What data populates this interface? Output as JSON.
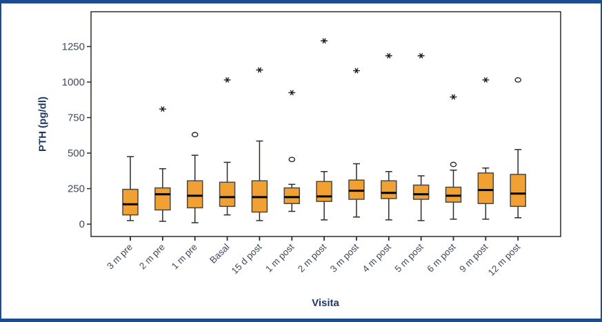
{
  "figure": {
    "border_color": "#1A4C8F",
    "background": "#FFFFFF"
  },
  "chart_data": {
    "type": "boxplot",
    "title": "",
    "xlabel": "Visita",
    "ylabel": "PTH (pg/dl)",
    "ylim": [
      -87,
      1495
    ],
    "yticks": [
      0,
      250,
      500,
      750,
      1000,
      1250
    ],
    "grid": false,
    "legend": "none",
    "outlier_markers": {
      "extreme": "asterisk",
      "mild": "circle"
    },
    "categories": [
      "3 m pre",
      "2 m pre",
      "1 m pre",
      "Basal",
      "15 d post",
      "1 m post",
      "2 m post",
      "3 m post",
      "4 m post",
      "5 m post",
      "6 m post",
      "9 m post",
      "12 m post"
    ],
    "boxes": [
      {
        "category": "3 m pre",
        "low": 25,
        "q1": 65,
        "median": 140,
        "q3": 245,
        "high": 475,
        "extreme_outliers": [],
        "mild_outliers": []
      },
      {
        "category": "2 m pre",
        "low": 20,
        "q1": 100,
        "median": 210,
        "q3": 255,
        "high": 390,
        "extreme_outliers": [
          810
        ],
        "mild_outliers": []
      },
      {
        "category": "1 m pre",
        "low": 10,
        "q1": 115,
        "median": 200,
        "q3": 305,
        "high": 485,
        "extreme_outliers": [],
        "mild_outliers": [
          630
        ]
      },
      {
        "category": "Basal",
        "low": 65,
        "q1": 125,
        "median": 190,
        "q3": 295,
        "high": 435,
        "extreme_outliers": [
          1015
        ],
        "mild_outliers": []
      },
      {
        "category": "15 d post",
        "low": 25,
        "q1": 85,
        "median": 190,
        "q3": 305,
        "high": 585,
        "extreme_outliers": [
          1085
        ],
        "mild_outliers": []
      },
      {
        "category": "1 m post",
        "low": 90,
        "q1": 145,
        "median": 190,
        "q3": 255,
        "high": 280,
        "extreme_outliers": [
          925
        ],
        "mild_outliers": [
          455
        ]
      },
      {
        "category": "2 m post",
        "low": 30,
        "q1": 160,
        "median": 195,
        "q3": 300,
        "high": 370,
        "extreme_outliers": [
          1290
        ],
        "mild_outliers": []
      },
      {
        "category": "3 m post",
        "low": 50,
        "q1": 175,
        "median": 235,
        "q3": 310,
        "high": 425,
        "extreme_outliers": [
          1080
        ],
        "mild_outliers": []
      },
      {
        "category": "4 m post",
        "low": 30,
        "q1": 180,
        "median": 220,
        "q3": 305,
        "high": 370,
        "extreme_outliers": [
          1185
        ],
        "mild_outliers": []
      },
      {
        "category": "5 m post",
        "low": 25,
        "q1": 175,
        "median": 210,
        "q3": 275,
        "high": 340,
        "extreme_outliers": [
          1185
        ],
        "mild_outliers": []
      },
      {
        "category": "6 m post",
        "low": 35,
        "q1": 155,
        "median": 200,
        "q3": 260,
        "high": 380,
        "extreme_outliers": [
          895
        ],
        "mild_outliers": [
          420
        ]
      },
      {
        "category": "9 m post",
        "low": 35,
        "q1": 145,
        "median": 240,
        "q3": 360,
        "high": 395,
        "extreme_outliers": [
          1015
        ],
        "mild_outliers": []
      },
      {
        "category": "12 m post",
        "low": 45,
        "q1": 125,
        "median": 215,
        "q3": 350,
        "high": 525,
        "extreme_outliers": [],
        "mild_outliers": [
          1015
        ]
      }
    ],
    "colors": {
      "box_fill": "#F1A134",
      "box_stroke": "#4A453E",
      "median": "#000000",
      "whisker": "#2E2A25",
      "axis": "#2E2A25",
      "outlier": "#1A1A1A",
      "tick_label": "#3E4A5C",
      "title": "#1F3864"
    }
  }
}
